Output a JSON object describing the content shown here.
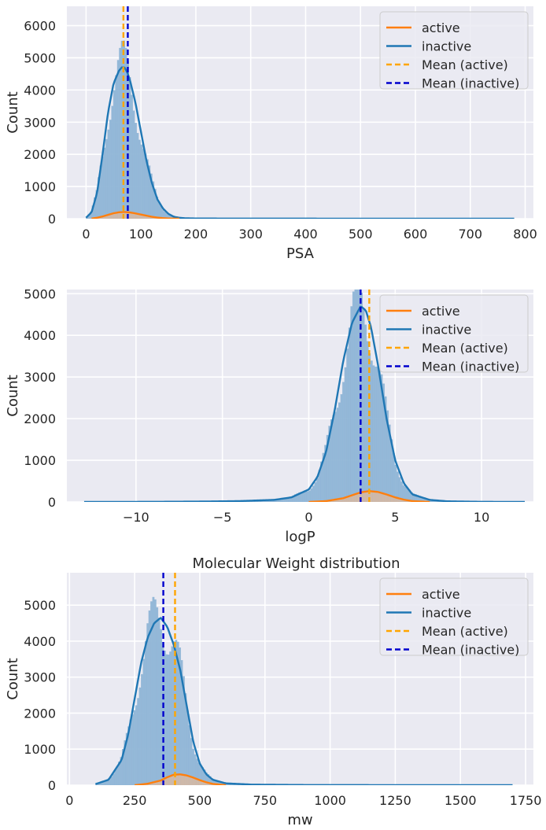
{
  "colors": {
    "background": "#eaeaf2",
    "grid": "#ffffff",
    "active": "#ff7f0e",
    "inactive": "#1f77b4",
    "inactive_fill": "#8fb5d6",
    "mean_active": "#ffa500",
    "mean_inactive": "#0000cd"
  },
  "chart_data": [
    {
      "type": "histogram",
      "title": "",
      "xlabel": "PSA",
      "ylabel": "Count",
      "xlim": [
        -35,
        815
      ],
      "ylim": [
        0,
        6600
      ],
      "xticks": [
        0,
        100,
        200,
        300,
        400,
        500,
        600,
        700,
        800
      ],
      "yticks": [
        0,
        1000,
        2000,
        3000,
        4000,
        5000,
        6000
      ],
      "xtick_labels": [
        "0",
        "100",
        "200",
        "300",
        "400",
        "500",
        "600",
        "700",
        "800"
      ],
      "ytick_labels": [
        "0",
        "1000",
        "2000",
        "3000",
        "4000",
        "5000",
        "6000"
      ],
      "grid": true,
      "legend": {
        "position": "top-right",
        "entries": [
          "active",
          "inactive",
          "Mean (active)",
          "Mean (inactive)"
        ]
      },
      "series": [
        {
          "name": "inactive",
          "kde_x": [
            0,
            10,
            20,
            30,
            40,
            50,
            60,
            65,
            70,
            75,
            80,
            90,
            100,
            110,
            120,
            130,
            140,
            150,
            160,
            170,
            180,
            200,
            250,
            300,
            400,
            500,
            600,
            700,
            780
          ],
          "kde_y": [
            30,
            200,
            800,
            2000,
            3300,
            4200,
            4600,
            4700,
            4700,
            4550,
            4300,
            3600,
            2700,
            1800,
            1100,
            600,
            320,
            150,
            60,
            30,
            15,
            8,
            5,
            4,
            3,
            2,
            2,
            1,
            0
          ]
        },
        {
          "name": "active",
          "kde_x": [
            10,
            20,
            30,
            40,
            50,
            60,
            70,
            80,
            90,
            100,
            110,
            120,
            130,
            140,
            150,
            160,
            170
          ],
          "kde_y": [
            5,
            30,
            70,
            120,
            170,
            200,
            210,
            195,
            165,
            130,
            95,
            60,
            35,
            18,
            8,
            3,
            0
          ]
        }
      ],
      "mean_lines": [
        {
          "name": "Mean (active)",
          "x": 68
        },
        {
          "name": "Mean (inactive)",
          "x": 76
        }
      ]
    },
    {
      "type": "histogram",
      "title": "",
      "xlabel": "logP",
      "ylabel": "Count",
      "xlim": [
        -14,
        13
      ],
      "ylim": [
        0,
        5100
      ],
      "xticks": [
        -10,
        -5,
        0,
        5,
        10
      ],
      "yticks": [
        0,
        1000,
        2000,
        3000,
        4000,
        5000
      ],
      "xtick_labels": [
        "−10",
        "−5",
        "0",
        "5",
        "10"
      ],
      "ytick_labels": [
        "0",
        "1000",
        "2000",
        "3000",
        "4000",
        "5000"
      ],
      "grid": true,
      "legend": {
        "position": "top-right",
        "entries": [
          "active",
          "inactive",
          "Mean (active)",
          "Mean (inactive)"
        ]
      },
      "series": [
        {
          "name": "inactive",
          "kde_x": [
            -13,
            -10,
            -8,
            -6,
            -4,
            -2,
            -1,
            0,
            0.5,
            1,
            1.5,
            2,
            2.5,
            3,
            3.3,
            3.6,
            4,
            4.5,
            5,
            5.5,
            6,
            7,
            8,
            10,
            12.5
          ],
          "kde_y": [
            0,
            2,
            5,
            10,
            20,
            50,
            110,
            300,
            600,
            1200,
            2200,
            3400,
            4300,
            4700,
            4600,
            4200,
            3300,
            2000,
            1000,
            450,
            180,
            50,
            15,
            3,
            0
          ],
          "hist_x": [
            -13,
            -10,
            -8,
            -6,
            -4,
            -2,
            -1,
            0,
            0.5,
            1,
            1.5,
            2,
            2.5,
            3,
            3.3,
            3.6,
            4,
            4.5,
            5,
            5.5,
            6,
            7,
            8,
            10,
            12.5
          ],
          "hist_y": [
            0,
            2,
            5,
            10,
            20,
            50,
            110,
            300,
            600,
            1200,
            2200,
            3400,
            4300,
            4700,
            4600,
            4200,
            3300,
            2000,
            1000,
            450,
            180,
            50,
            15,
            3,
            0
          ]
        },
        {
          "name": "active",
          "kde_x": [
            0,
            1,
            2,
            2.5,
            3,
            3.5,
            4,
            4.5,
            5,
            5.5,
            6,
            7
          ],
          "kde_y": [
            0,
            20,
            90,
            160,
            230,
            260,
            240,
            180,
            110,
            55,
            20,
            0
          ]
        }
      ],
      "mean_lines": [
        {
          "name": "Mean (active)",
          "x": 3.5
        },
        {
          "name": "Mean (inactive)",
          "x": 3.0
        }
      ]
    },
    {
      "type": "histogram",
      "title": "Molecular Weight distribution",
      "xlabel": "mw",
      "ylabel": "Count",
      "xlim": [
        -10,
        1780
      ],
      "ylim": [
        0,
        5900
      ],
      "xticks": [
        0,
        250,
        500,
        750,
        1000,
        1250,
        1500,
        1750
      ],
      "yticks": [
        0,
        1000,
        2000,
        3000,
        4000,
        5000
      ],
      "xtick_labels": [
        "0",
        "250",
        "500",
        "750",
        "1000",
        "1250",
        "1500",
        "1750"
      ],
      "ytick_labels": [
        "0",
        "1000",
        "2000",
        "3000",
        "4000",
        "5000"
      ],
      "grid": true,
      "legend": {
        "position": "top-right",
        "entries": [
          "active",
          "inactive",
          "Mean (active)",
          "Mean (inactive)"
        ]
      },
      "series": [
        {
          "name": "inactive",
          "kde_x": [
            100,
            150,
            200,
            225,
            250,
            275,
            300,
            325,
            350,
            375,
            400,
            425,
            450,
            475,
            500,
            525,
            550,
            600,
            700,
            900,
            1200,
            1500,
            1700
          ],
          "kde_y": [
            30,
            150,
            700,
            1400,
            2400,
            3400,
            4100,
            4500,
            4650,
            4400,
            3900,
            3200,
            2200,
            1200,
            600,
            300,
            150,
            50,
            15,
            5,
            2,
            1,
            0
          ]
        },
        {
          "name": "active",
          "kde_x": [
            250,
            300,
            350,
            375,
            400,
            425,
            450,
            475,
            500,
            525,
            550,
            600
          ],
          "kde_y": [
            0,
            40,
            130,
            220,
            290,
            300,
            270,
            210,
            140,
            80,
            35,
            0
          ]
        }
      ],
      "mean_lines": [
        {
          "name": "Mean (active)",
          "x": 405
        },
        {
          "name": "Mean (inactive)",
          "x": 360
        }
      ]
    }
  ]
}
